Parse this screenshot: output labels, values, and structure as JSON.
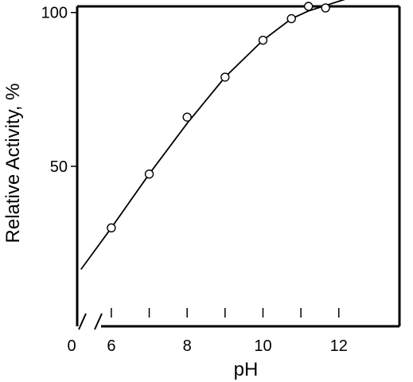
{
  "chart_data": {
    "type": "line",
    "title": "",
    "xlabel": "pH",
    "ylabel": "Relative Activity, %",
    "xlim": [
      5.1,
      13.6
    ],
    "ylim": [
      -2,
      102
    ],
    "axis_break": "x",
    "x_origin_label": "0",
    "x_tick_labels": [
      {
        "value": 6,
        "label": "6"
      },
      {
        "value": 8,
        "label": "8"
      },
      {
        "value": 10,
        "label": "10"
      },
      {
        "value": 12,
        "label": "12"
      }
    ],
    "x_minor_ticks": [
      6,
      7,
      8,
      9,
      10,
      11,
      12
    ],
    "y_tick_labels": [
      {
        "value": 50,
        "label": "50"
      },
      {
        "value": 100,
        "label": "100"
      }
    ],
    "series": [
      {
        "points": [
          {
            "x": 6.0,
            "y": 30
          },
          {
            "x": 7.0,
            "y": 47.5
          },
          {
            "x": 8.0,
            "y": 66
          },
          {
            "x": 9.0,
            "y": 79
          },
          {
            "x": 10.0,
            "y": 91
          },
          {
            "x": 10.75,
            "y": 98
          },
          {
            "x": 11.2,
            "y": 102
          },
          {
            "x": 11.65,
            "y": 101.5
          },
          {
            "x": 12.6,
            "y": 106
          }
        ],
        "curve": [
          {
            "x": 5.2,
            "y": 16.5
          },
          {
            "x": 6.0,
            "y": 30
          },
          {
            "x": 7.0,
            "y": 47.5
          },
          {
            "x": 8.0,
            "y": 64
          },
          {
            "x": 9.0,
            "y": 79
          },
          {
            "x": 10.0,
            "y": 91
          },
          {
            "x": 10.75,
            "y": 98
          },
          {
            "x": 11.2,
            "y": 100.5
          },
          {
            "x": 12.6,
            "y": 106
          }
        ]
      }
    ]
  }
}
